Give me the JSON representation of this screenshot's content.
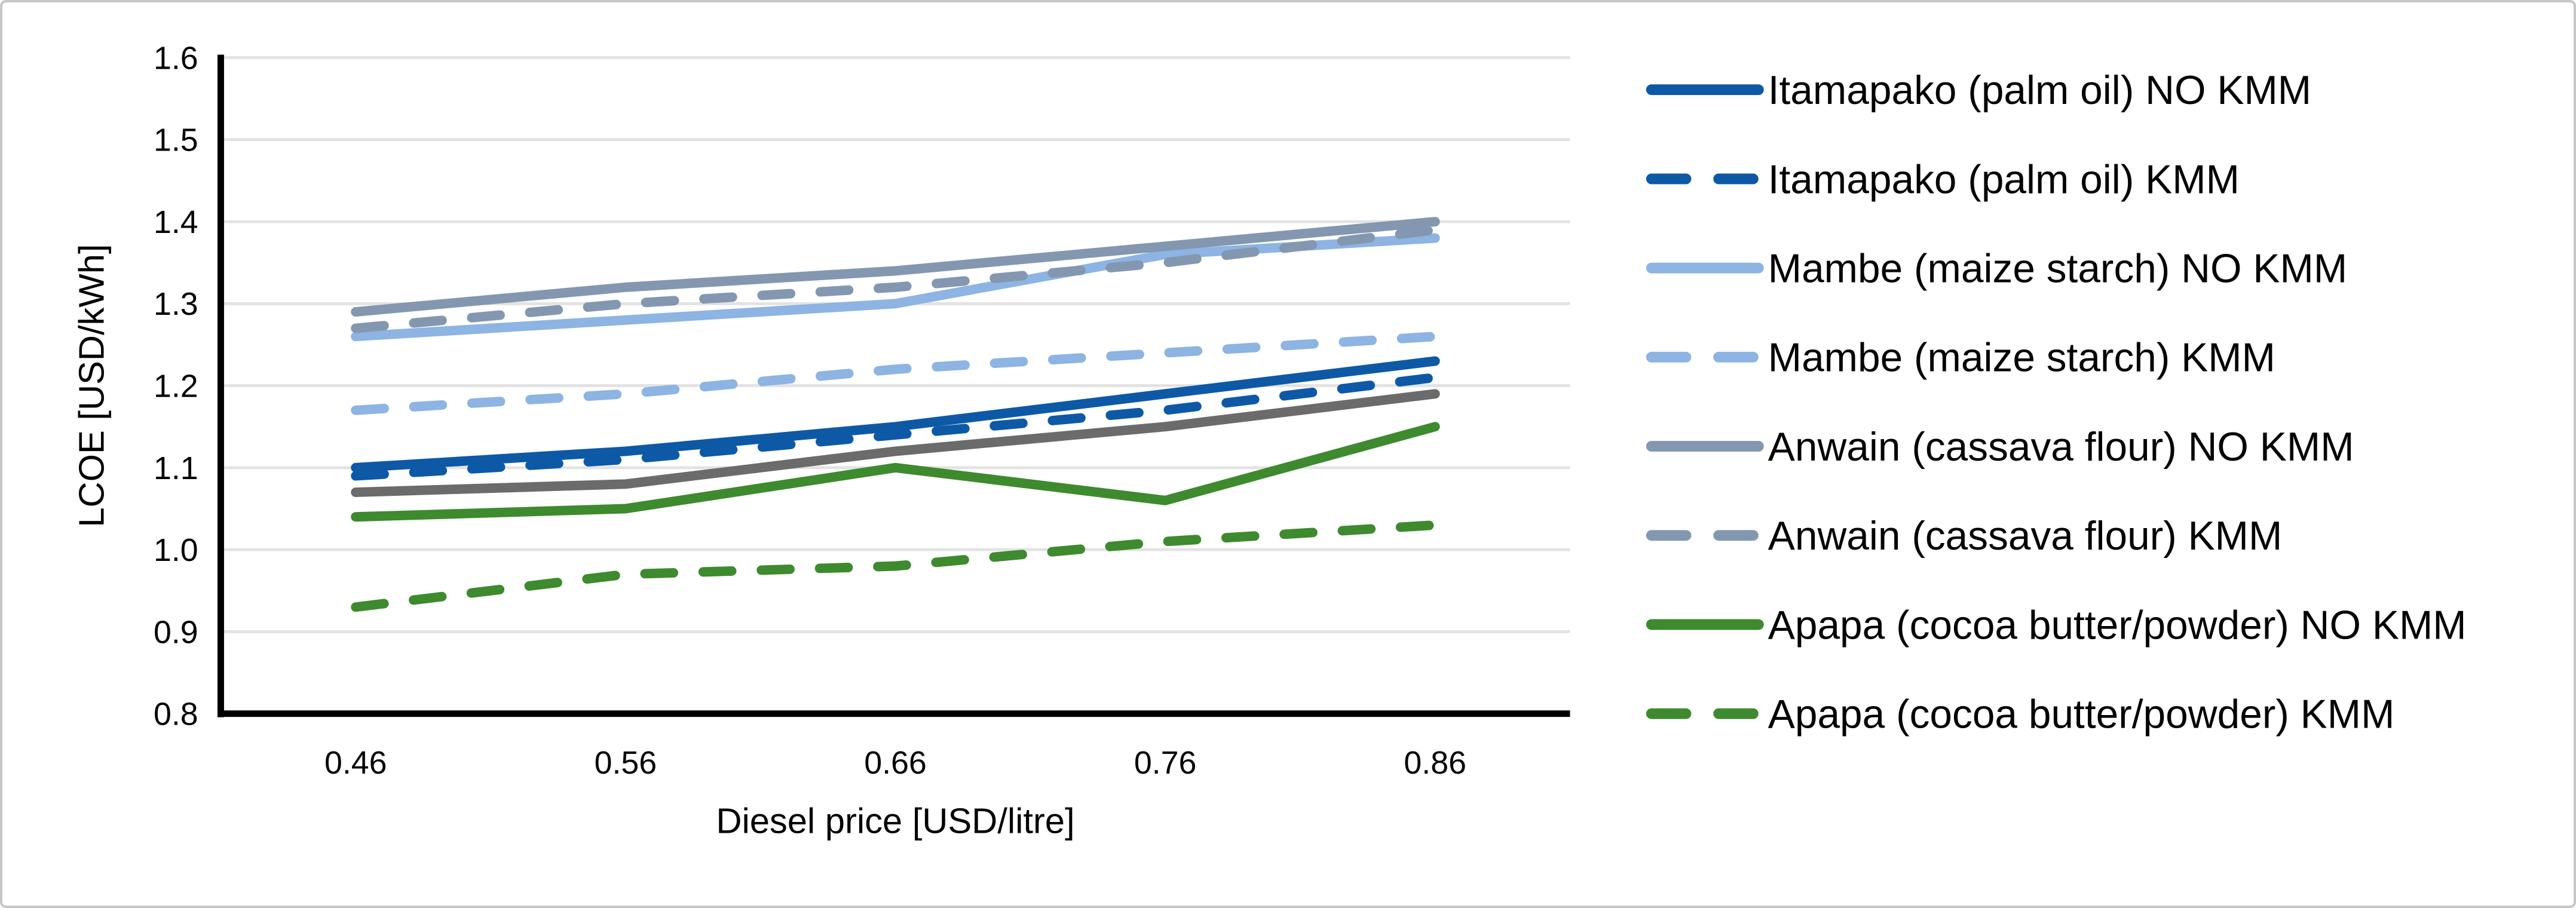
{
  "figure": {
    "background": "#FFFFFF",
    "border_color": "#C6C6C6"
  },
  "chart_data": {
    "type": "line",
    "title": "",
    "xlabel": "Diesel price [USD/litre]",
    "ylabel": "LCOE [USD/kWh]",
    "x_categories": [
      "0.46",
      "0.56",
      "0.66",
      "0.76",
      "0.86"
    ],
    "ylim": [
      0.8,
      1.6
    ],
    "y_ticks": [
      "1.6",
      "1.5",
      "1.4",
      "1.3",
      "1.2",
      "1.1",
      "1.0",
      "0.9",
      "0.8"
    ],
    "grid": "horizontal",
    "gridline_color": "#E3E3E3",
    "axis_color": "#000000",
    "legend_position": "right",
    "series": [
      {
        "name": "",
        "in_legend": false,
        "color": "#6B6B6B",
        "dash": false,
        "values": [
          1.07,
          1.08,
          1.12,
          1.15,
          1.19
        ]
      },
      {
        "name": "Itamapako (palm oil) NO KMM",
        "in_legend": true,
        "color": "#0E59A6",
        "dash": false,
        "values": [
          1.1,
          1.12,
          1.15,
          1.19,
          1.23
        ]
      },
      {
        "name": "Itamapako (palm oil) KMM",
        "in_legend": true,
        "color": "#0E59A6",
        "dash": true,
        "values": [
          1.09,
          1.11,
          1.14,
          1.17,
          1.21
        ]
      },
      {
        "name": "Mambe (maize starch) NO KMM",
        "in_legend": true,
        "color": "#8DB4E2",
        "dash": false,
        "values": [
          1.26,
          1.28,
          1.3,
          1.36,
          1.38
        ]
      },
      {
        "name": "Mambe (maize starch) KMM",
        "in_legend": true,
        "color": "#8DB4E2",
        "dash": true,
        "values": [
          1.17,
          1.19,
          1.22,
          1.24,
          1.26
        ]
      },
      {
        "name": "Anwain (cassava flour) NO KMM",
        "in_legend": true,
        "color": "#8497B0",
        "dash": false,
        "values": [
          1.29,
          1.32,
          1.34,
          1.37,
          1.4
        ]
      },
      {
        "name": "Anwain (cassava flour) KMM",
        "in_legend": true,
        "color": "#8497B0",
        "dash": true,
        "values": [
          1.27,
          1.3,
          1.32,
          1.35,
          1.39
        ]
      },
      {
        "name": "Apapa (cocoa butter/powder) NO KMM",
        "in_legend": true,
        "color": "#3E8A2E",
        "dash": false,
        "values": [
          1.04,
          1.05,
          1.1,
          1.06,
          1.15
        ]
      },
      {
        "name": "Apapa (cocoa butter/powder) KMM",
        "in_legend": true,
        "color": "#3E8A2E",
        "dash": true,
        "values": [
          0.93,
          0.97,
          0.98,
          1.01,
          1.03
        ]
      }
    ]
  }
}
